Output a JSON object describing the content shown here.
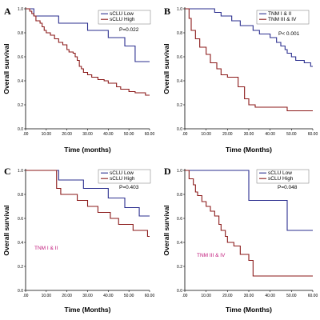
{
  "colors": {
    "low": "#2b2f8f",
    "high": "#8b1a1a",
    "annotation": "#c0187a",
    "legend_border": "#777777"
  },
  "chart_data": [
    {
      "panel": "A",
      "type": "line",
      "step": true,
      "xlabel": "Time (months)",
      "ylabel": "Overall survival",
      "xlim": [
        0,
        60
      ],
      "ylim": [
        0,
        1
      ],
      "x_ticks": [
        ".00",
        "10.00",
        "20.00",
        "30.00",
        "40.00",
        "50.00",
        "60.00"
      ],
      "y_ticks": [
        "0.0",
        "0.2",
        "0.4",
        "0.6",
        "0.8",
        "1.0"
      ],
      "legend_position": "top-right",
      "p_value": "P=0.022",
      "annotation": "",
      "series": [
        {
          "name": "sCLU Low",
          "color_key": "low",
          "x": [
            0,
            4,
            16,
            30,
            40,
            48,
            53,
            60
          ],
          "y": [
            1.0,
            0.94,
            0.88,
            0.82,
            0.76,
            0.69,
            0.56,
            0.56
          ]
        },
        {
          "name": "sCLU High",
          "color_key": "high",
          "x": [
            0,
            2,
            3,
            4,
            5,
            7,
            8,
            9,
            10,
            12,
            14,
            16,
            18,
            20,
            21,
            23,
            24,
            25,
            26,
            27,
            28,
            30,
            32,
            35,
            38,
            40,
            44,
            46,
            50,
            53,
            58,
            60
          ],
          "y": [
            1.0,
            0.98,
            0.96,
            0.94,
            0.9,
            0.88,
            0.85,
            0.82,
            0.8,
            0.78,
            0.75,
            0.72,
            0.7,
            0.66,
            0.64,
            0.63,
            0.6,
            0.57,
            0.52,
            0.5,
            0.47,
            0.45,
            0.43,
            0.41,
            0.4,
            0.38,
            0.35,
            0.33,
            0.31,
            0.3,
            0.28,
            0.28
          ]
        }
      ]
    },
    {
      "panel": "B",
      "type": "line",
      "step": true,
      "xlabel": "Time (Months)",
      "ylabel": "Overall survival",
      "xlim": [
        0,
        60
      ],
      "ylim": [
        0,
        1
      ],
      "x_ticks": [
        ".00",
        "10.00",
        "20.00",
        "30.00",
        "40.00",
        "50.00",
        "60.00"
      ],
      "y_ticks": [
        "0.0",
        "0.2",
        "0.4",
        "0.6",
        "0.8",
        "1.0"
      ],
      "legend_position": "top-right",
      "p_value": "P< 0.001",
      "annotation": "",
      "series": [
        {
          "name": "TNM I & II",
          "color_key": "low",
          "x": [
            0,
            14,
            17,
            22,
            26,
            32,
            35,
            40,
            43,
            45,
            47,
            48,
            50,
            52,
            56,
            59,
            60
          ],
          "y": [
            1.0,
            0.97,
            0.94,
            0.9,
            0.86,
            0.82,
            0.79,
            0.76,
            0.72,
            0.69,
            0.66,
            0.63,
            0.6,
            0.57,
            0.55,
            0.52,
            0.52
          ]
        },
        {
          "name": "TNM III & IV",
          "color_key": "high",
          "x": [
            0,
            2,
            3,
            5,
            7,
            10,
            12,
            15,
            17,
            20,
            25,
            28,
            30,
            33,
            48,
            60
          ],
          "y": [
            1.0,
            0.92,
            0.82,
            0.75,
            0.68,
            0.62,
            0.55,
            0.5,
            0.45,
            0.43,
            0.35,
            0.25,
            0.2,
            0.18,
            0.15,
            0.15
          ]
        }
      ]
    },
    {
      "panel": "C",
      "type": "line",
      "step": true,
      "xlabel": "Time (Months)",
      "ylabel": "Overall survival",
      "xlim": [
        0,
        60
      ],
      "ylim": [
        0,
        1
      ],
      "x_ticks": [
        ".00",
        "10.00",
        "20.00",
        "30.00",
        "40.00",
        "50.00",
        "60.00"
      ],
      "y_ticks": [
        "0.0",
        "0.2",
        "0.4",
        "0.6",
        "0.8",
        "1.0"
      ],
      "legend_position": "top-right",
      "p_value": "P=0.403",
      "annotation": "TNM  I & II",
      "series": [
        {
          "name": "sCLU Low",
          "color_key": "low",
          "x": [
            0,
            16,
            28,
            40,
            48,
            55,
            60
          ],
          "y": [
            1.0,
            0.92,
            0.85,
            0.77,
            0.69,
            0.62,
            0.62
          ]
        },
        {
          "name": "sCLU High",
          "color_key": "high",
          "x": [
            0,
            15,
            17,
            25,
            30,
            35,
            41,
            45,
            50,
            52,
            57,
            59,
            60
          ],
          "y": [
            1.0,
            0.85,
            0.8,
            0.75,
            0.7,
            0.65,
            0.6,
            0.55,
            0.55,
            0.5,
            0.5,
            0.45,
            0.45
          ]
        }
      ]
    },
    {
      "panel": "D",
      "type": "line",
      "step": true,
      "xlabel": "Time (Months)",
      "ylabel": "Overall survival",
      "xlim": [
        0,
        60
      ],
      "ylim": [
        0,
        1
      ],
      "x_ticks": [
        ".00",
        "10.00",
        "20.00",
        "30.00",
        "40.00",
        "50.00",
        "60.00"
      ],
      "y_ticks": [
        "0.0",
        "0.2",
        "0.4",
        "0.6",
        "0.8",
        "1.0"
      ],
      "legend_position": "top-right",
      "p_value": "P=0.048",
      "annotation": "TNM  III & IV",
      "series": [
        {
          "name": "sCLU Low",
          "color_key": "low",
          "x": [
            0,
            30,
            48,
            60
          ],
          "y": [
            1.0,
            0.75,
            0.5,
            0.5
          ]
        },
        {
          "name": "sCLU High",
          "color_key": "high",
          "x": [
            0,
            2,
            4,
            5,
            6,
            8,
            10,
            12,
            14,
            16,
            17,
            19,
            20,
            23,
            26,
            30,
            32,
            60
          ],
          "y": [
            1.0,
            0.93,
            0.88,
            0.82,
            0.79,
            0.74,
            0.7,
            0.66,
            0.62,
            0.55,
            0.5,
            0.45,
            0.4,
            0.37,
            0.3,
            0.25,
            0.12,
            0.12
          ]
        }
      ]
    }
  ]
}
